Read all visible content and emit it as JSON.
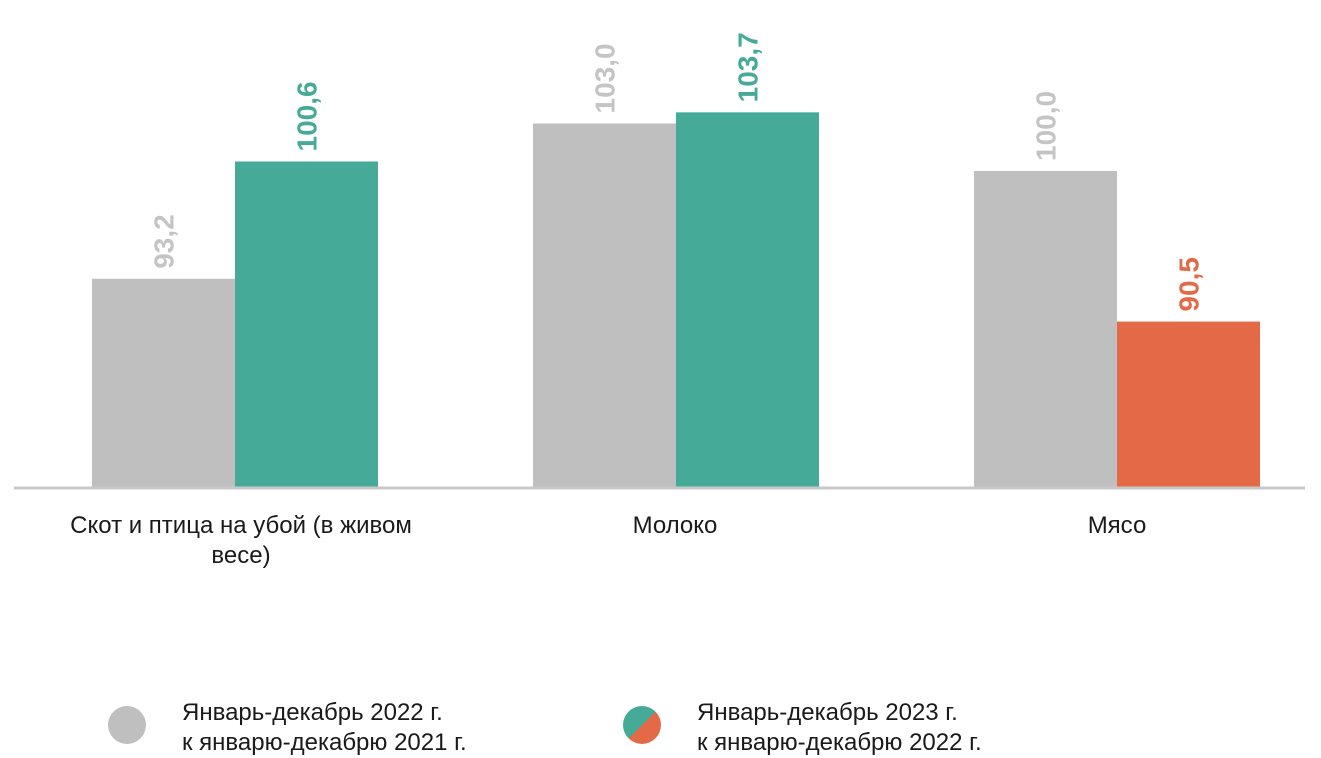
{
  "chart_data": {
    "type": "bar",
    "categories": [
      [
        "Скот и птица на убой (в живом",
        "весе)"
      ],
      [
        "Молоко"
      ],
      [
        "Мясо"
      ]
    ],
    "series": [
      {
        "values": [
          93.2,
          103.0,
          100.0
        ],
        "labels": [
          "93,2",
          "103,0",
          "100,0"
        ],
        "colors": [
          "#bfbfbf",
          "#bfbfbf",
          "#bfbfbf"
        ]
      },
      {
        "values": [
          100.6,
          103.7,
          90.5
        ],
        "labels": [
          "100,6",
          "103,7",
          "90,5"
        ],
        "colors": [
          "#45aa97",
          "#45aa97",
          "#e46a47"
        ]
      }
    ],
    "axis_baseline": 80,
    "grid": false,
    "legend_position": "bottom"
  },
  "legend": [
    {
      "line1": "Январь-декабрь 2022 г.",
      "line2": "к январю-декабрю 2021 г.",
      "marker": "gray-circle"
    },
    {
      "line1": "Январь-декабрь 2023 г.",
      "line2": "к январю-декабрю 2022 г.",
      "marker": "green-orange-circle"
    }
  ],
  "colors": {
    "gray": "#bfbfbf",
    "label_gray": "#c4c4c4",
    "green": "#45aa97",
    "orange": "#e46a47",
    "axis": "#c8c8c8"
  }
}
